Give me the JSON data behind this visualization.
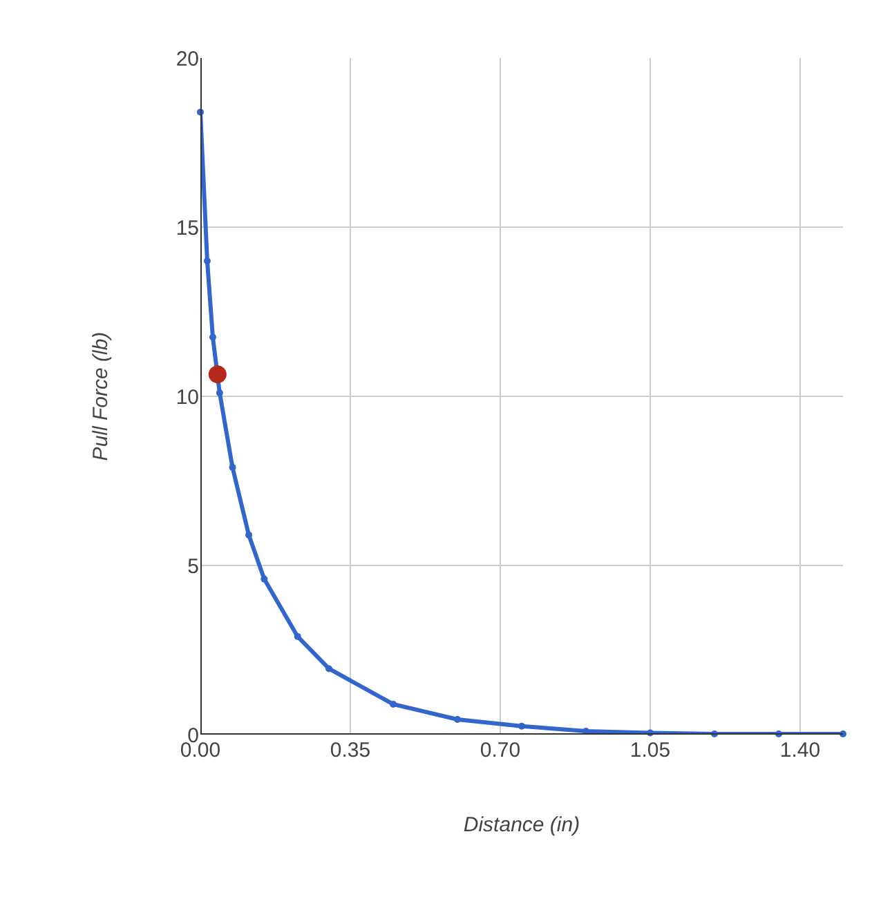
{
  "chart_data": {
    "type": "line",
    "xlabel": "Distance (in)",
    "ylabel": "Pull Force (lb)",
    "xlim": [
      0,
      1.5
    ],
    "ylim": [
      0,
      20
    ],
    "xticks": [
      {
        "value": 0,
        "label": "0.00"
      },
      {
        "value": 0.35,
        "label": "0.35"
      },
      {
        "value": 0.7,
        "label": "0.70"
      },
      {
        "value": 1.05,
        "label": "1.05"
      },
      {
        "value": 1.4,
        "label": "1.40"
      }
    ],
    "yticks": [
      0,
      5,
      10,
      15,
      20
    ],
    "grid": true,
    "marker": "circle",
    "line_style": "solid",
    "series": [
      {
        "color": "#3366cc",
        "x": [
          0,
          0.016,
          0.029,
          0.045,
          0.075,
          0.113,
          0.149,
          0.227,
          0.3,
          0.45,
          0.6,
          0.75,
          0.9,
          1.05,
          1.2,
          1.35,
          1.5
        ],
        "values": [
          18.4,
          14.0,
          11.75,
          10.1,
          7.9,
          5.9,
          4.6,
          2.9,
          1.95,
          0.9,
          0.45,
          0.25,
          0.1,
          0.05,
          0.02,
          0.02,
          0.02
        ]
      },
      {
        "type": "scatter",
        "color": "#b5281c",
        "x": [
          0.04
        ],
        "values": [
          10.65
        ]
      }
    ]
  }
}
